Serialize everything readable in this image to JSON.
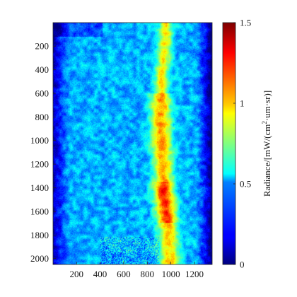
{
  "chart_data": {
    "type": "heatmap",
    "title": "",
    "xlabel": "",
    "ylabel": "",
    "x_ticks": [
      200,
      400,
      600,
      800,
      1000,
      1200
    ],
    "y_ticks": [
      200,
      400,
      600,
      800,
      1000,
      1200,
      1400,
      1600,
      1800,
      2000
    ],
    "xlim": [
      1,
      1350
    ],
    "ylim": [
      2050,
      1
    ],
    "y_reversed": true,
    "colormap": "jet",
    "colorbar": {
      "range": [
        0,
        1.5
      ],
      "ticks": [
        0,
        0.5,
        1,
        1.5
      ],
      "tick_labels": [
        "0",
        "0.5",
        "1",
        "1.5"
      ],
      "label_prefix": "Radiance/[mW/(cm",
      "label_sup": "2",
      "label_suffix": "·um·sr)]",
      "placement": "right"
    },
    "grid": false,
    "bright_band": {
      "description_x_center_by_row": [
        [
          0,
          960
        ],
        [
          200,
          950
        ],
        [
          400,
          930
        ],
        [
          600,
          920
        ],
        [
          800,
          920
        ],
        [
          1000,
          920
        ],
        [
          1200,
          935
        ],
        [
          1400,
          940
        ],
        [
          1600,
          960
        ],
        [
          1800,
          980
        ],
        [
          2000,
          990
        ]
      ],
      "peak_value": 1.45,
      "peak_rows": [
        1350,
        1700
      ]
    },
    "background_level": 0.45,
    "left_edge_dark": true,
    "right_edge_dark": true
  }
}
